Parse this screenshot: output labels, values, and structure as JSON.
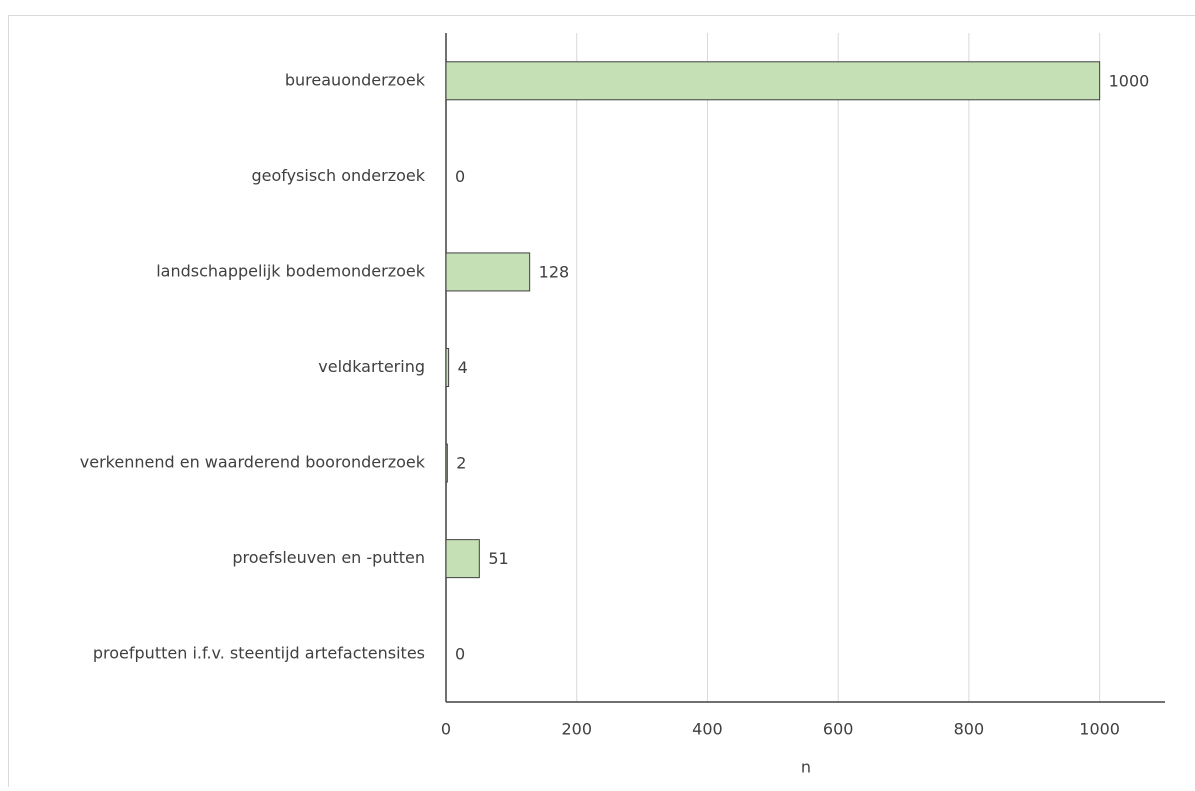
{
  "chart_data": {
    "type": "bar",
    "orientation": "horizontal",
    "categories": [
      "bureauonderzoek",
      "geofysisch onderzoek",
      "landschappelijk bodemonderzoek",
      "veldkartering",
      "verkennend en waarderend booronderzoek",
      "proefsleuven en -putten",
      "proefputten i.f.v. steentijd artefactensites"
    ],
    "values": [
      1000,
      0,
      128,
      4,
      2,
      51,
      0
    ],
    "color": "#c5e0b4",
    "edge_color": "#404040",
    "xlabel": "n",
    "xlim": [
      0,
      1100
    ],
    "xticks": [
      0,
      200,
      400,
      600,
      800,
      1000
    ],
    "grid": true
  }
}
